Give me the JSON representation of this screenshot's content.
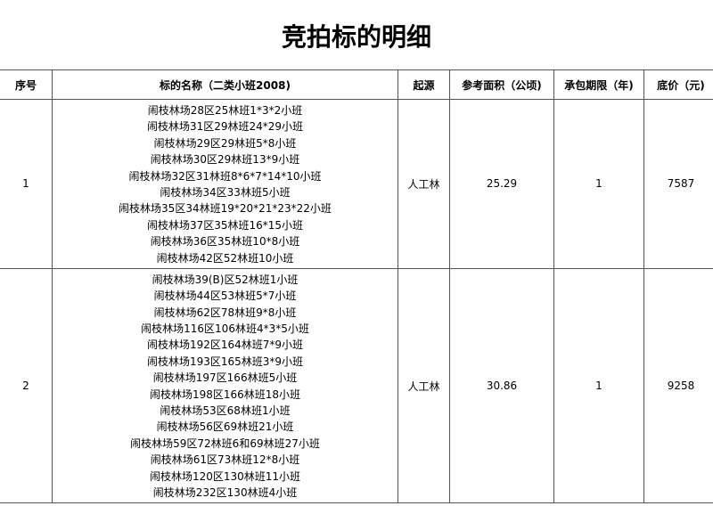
{
  "title": "竞拍标的明细",
  "headers": [
    "序号",
    "标的名称（二类小班2008)",
    "起源",
    "参考面积（公顷)",
    "承包期限（年)",
    "底价（元)"
  ],
  "rows": [
    {
      "no": "1",
      "names": [
        "闹枝林场28区25林班1*3*2小班",
        "闹枝林场31区29林班24*29小班",
        "闹枝林场29区29林班5*8小班",
        "闹枝林场30区29林班13*9小班",
        "闹枝林场32区31林班8*6*7*14*10小班",
        "闹枝林场34区33林班5小班",
        "闹枝林场35区34林班19*20*21*23*22小班",
        "闹枝林场37区35林班16*15小班",
        "闹枝林场36区35林班10*8小班",
        "闹枝林场42区52林班10小班"
      ],
      "origin": "人工林",
      "area": "25.29",
      "term": "1",
      "price": "7587"
    },
    {
      "no": "2",
      "names": [
        "闹枝林场39(B)区52林班1小班",
        "闹枝林场44区53林班5*7小班",
        "闹枝林场62区78林班9*8小班",
        "闹枝林场116区106林班4*3*5小班",
        "闹枝林场192区164林班7*9小班",
        "闹枝林场193区165林班3*9小班",
        "闹枝林场197区166林班5小班",
        "闹枝林场198区166林班18小班",
        "闹枝林场53区68林班1小班",
        "闹枝林场56区69林班21小班",
        "闹枝林场59区72林班6和69林班27小班",
        "闹枝林场61区73林班12*8小班",
        "闹枝林场120区130林班11小班",
        "闹枝林场232区130林班4小班"
      ],
      "origin": "人工林",
      "area": "30.86",
      "term": "1",
      "price": "9258"
    }
  ]
}
